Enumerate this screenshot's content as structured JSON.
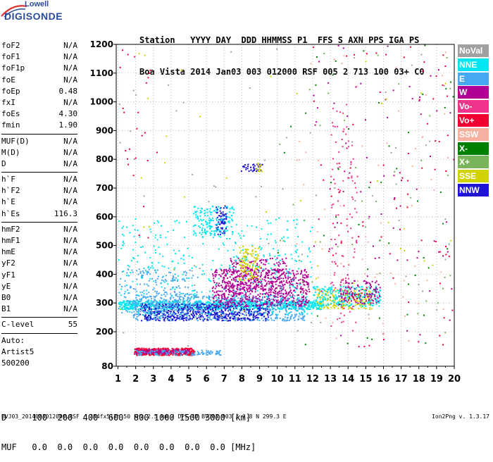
{
  "header": {
    "labels_line": "Station   YYYY DAY  DDD HHMMSS P1  FFS S AXN PPS IGA PS",
    "values_line": "Boa Vista 2014 Jan03 003 012000 RSF 005 2 713 100 03+ C0"
  },
  "logo": {
    "line1": "Lowell",
    "line2": "DIGISONDE"
  },
  "params_groups": [
    [
      {
        "k": "foF2",
        "v": "N/A"
      },
      {
        "k": "foF1",
        "v": "N/A"
      },
      {
        "k": "foF1p",
        "v": "N/A"
      },
      {
        "k": "foE",
        "v": "N/A"
      },
      {
        "k": "foEp",
        "v": "0.48"
      },
      {
        "k": "fxI",
        "v": "N/A"
      },
      {
        "k": "foEs",
        "v": "4.30"
      },
      {
        "k": "fmin",
        "v": "1.90"
      }
    ],
    [
      {
        "k": "MUF(D)",
        "v": "N/A"
      },
      {
        "k": "M(D)",
        "v": "N/A"
      },
      {
        "k": "D",
        "v": "N/A"
      }
    ],
    [
      {
        "k": "h`F",
        "v": "N/A"
      },
      {
        "k": "h`F2",
        "v": "N/A"
      },
      {
        "k": "h`E",
        "v": "N/A"
      },
      {
        "k": "h`Es",
        "v": "116.3"
      }
    ],
    [
      {
        "k": "hmF2",
        "v": "N/A"
      },
      {
        "k": "hmF1",
        "v": "N/A"
      },
      {
        "k": "hmE",
        "v": "N/A"
      },
      {
        "k": "yF2",
        "v": "N/A"
      },
      {
        "k": "yF1",
        "v": "N/A"
      },
      {
        "k": "yE",
        "v": "N/A"
      },
      {
        "k": "B0",
        "v": "N/A"
      },
      {
        "k": "B1",
        "v": "N/A"
      }
    ],
    [
      {
        "k": "C-level",
        "v": "55"
      }
    ],
    [
      {
        "k": "Auto:",
        "v": ""
      },
      {
        "k": "Artist5",
        "v": ""
      },
      {
        "k": "500200",
        "v": ""
      }
    ]
  ],
  "legend": [
    {
      "label": "NoVal",
      "color": "#a0a0a0"
    },
    {
      "label": "NNE",
      "color": "#00e6f0"
    },
    {
      "label": "E",
      "color": "#46a8f0"
    },
    {
      "label": "W",
      "color": "#b00094"
    },
    {
      "label": "Vo-",
      "color": "#f0348c"
    },
    {
      "label": "Vo+",
      "color": "#f00030"
    },
    {
      "label": "SSW",
      "color": "#f8b0a0"
    },
    {
      "label": "X-",
      "color": "#008000"
    },
    {
      "label": "X+",
      "color": "#78b45a"
    },
    {
      "label": "SSE",
      "color": "#d2d200"
    },
    {
      "label": "NNW",
      "color": "#1e14d2"
    }
  ],
  "bottom": {
    "d_line": "D     100  200  400  600  800 1000 1500 3000 [km]",
    "muf_line": "MUF   0.0  0.0  0.0  0.0  0.0  0.0  0.0  0.0 [MHz]"
  },
  "footer": "BVJ03_2014003012000.RSF / 384fx512h 50 kHz 2.5 km / DPS-4D BVJ03 003 / 2.8 N 299.3 E",
  "version": "Ion2Png v. 1.3.17",
  "chart_data": {
    "type": "scatter",
    "x_ticks": [
      1,
      2,
      3,
      4,
      5,
      6,
      7,
      8,
      9,
      10,
      11,
      12,
      13,
      14,
      15,
      16,
      17,
      18,
      19,
      20
    ],
    "y_ticks": [
      80,
      200,
      300,
      400,
      500,
      600,
      700,
      800,
      900,
      1000,
      1100,
      1200
    ],
    "xlim": [
      0.9,
      20.0
    ],
    "ylim": [
      80,
      1200
    ],
    "grid": true,
    "clusters": [
      {
        "series": "Vo+",
        "x": [
          1.9,
          5.3
        ],
        "y": [
          120,
          145
        ],
        "n": 420
      },
      {
        "series": "W",
        "x": [
          2.0,
          5.0
        ],
        "y": [
          126,
          140
        ],
        "n": 140
      },
      {
        "series": "E",
        "x": [
          1.9,
          7.0
        ],
        "y": [
          120,
          138
        ],
        "n": 120
      },
      {
        "series": "NNE",
        "x": [
          1.0,
          12.5
        ],
        "y": [
          280,
          310
        ],
        "n": 900
      },
      {
        "series": "E",
        "x": [
          1.8,
          11.5
        ],
        "y": [
          240,
          330
        ],
        "n": 700
      },
      {
        "series": "NNW",
        "x": [
          2.2,
          9.5
        ],
        "y": [
          240,
          300
        ],
        "n": 500
      },
      {
        "series": "W",
        "x": [
          6.3,
          11.8
        ],
        "y": [
          290,
          420
        ],
        "n": 650
      },
      {
        "series": "W",
        "x": [
          7.2,
          10.5
        ],
        "y": [
          330,
          460
        ],
        "n": 250
      },
      {
        "series": "SSE",
        "x": [
          7.8,
          9.0
        ],
        "y": [
          380,
          500
        ],
        "n": 120
      },
      {
        "series": "NNE",
        "x": [
          5.2,
          7.5
        ],
        "y": [
          530,
          640
        ],
        "n": 150
      },
      {
        "series": "NNW",
        "x": [
          6.5,
          7.1
        ],
        "y": [
          540,
          640
        ],
        "n": 60
      },
      {
        "series": "NNW",
        "x": [
          7.9,
          9.2
        ],
        "y": [
          760,
          785
        ],
        "n": 40
      },
      {
        "series": "SSE",
        "x": [
          8.7,
          9.1
        ],
        "y": [
          760,
          790
        ],
        "n": 15
      },
      {
        "series": "SSE",
        "x": [
          12.2,
          15.3
        ],
        "y": [
          280,
          350
        ],
        "n": 200
      },
      {
        "series": "NNE",
        "x": [
          12.0,
          15.8
        ],
        "y": [
          290,
          360
        ],
        "n": 250
      },
      {
        "series": "W",
        "x": [
          13.5,
          15.8
        ],
        "y": [
          300,
          380
        ],
        "n": 120
      },
      {
        "series": "NNE",
        "x": [
          1.0,
          12.0
        ],
        "y": [
          260,
          600
        ],
        "n": 400
      },
      {
        "series": "E",
        "x": [
          1.0,
          5.5
        ],
        "y": [
          260,
          420
        ],
        "n": 250
      },
      {
        "series": "Vo-",
        "x": [
          13.0,
          14.5
        ],
        "y": [
          200,
          1000
        ],
        "n": 120
      },
      {
        "series": "Vo+",
        "x": [
          12.0,
          20.0
        ],
        "y": [
          150,
          1200
        ],
        "n": 80
      },
      {
        "series": "W",
        "x": [
          12.0,
          20.0
        ],
        "y": [
          150,
          1200
        ],
        "n": 70
      },
      {
        "series": "SSW",
        "x": [
          11.0,
          20.0
        ],
        "y": [
          150,
          1200
        ],
        "n": 70
      },
      {
        "series": "X-",
        "x": [
          10.0,
          20.0
        ],
        "y": [
          150,
          1200
        ],
        "n": 50
      },
      {
        "series": "X+",
        "x": [
          10.0,
          20.0
        ],
        "y": [
          150,
          1200
        ],
        "n": 40
      },
      {
        "series": "NoVal",
        "x": [
          1.0,
          20.0
        ],
        "y": [
          150,
          1200
        ],
        "n": 60
      },
      {
        "series": "SSE",
        "x": [
          1.0,
          20.0
        ],
        "y": [
          150,
          1200
        ],
        "n": 40
      },
      {
        "series": "Vo+",
        "x": [
          0.95,
          3.5
        ],
        "y": [
          500,
          1200
        ],
        "n": 25
      }
    ]
  }
}
